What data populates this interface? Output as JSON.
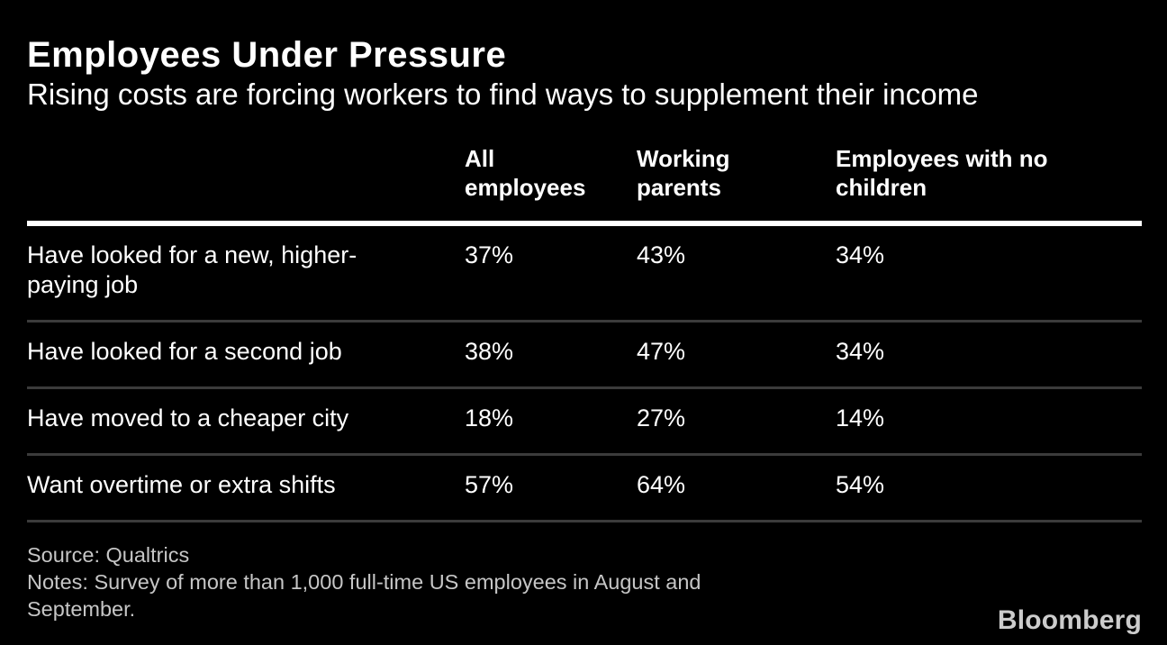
{
  "title": "Employees Under Pressure",
  "subtitle": "Rising costs are forcing workers to find ways to supplement their income",
  "table": {
    "header": [
      "",
      "All\nemployees",
      "Working\nparents",
      "Employees with no\nchildren"
    ],
    "rows": [
      {
        "label": "Have looked for a new, higher-\npaying job",
        "v1": "37%",
        "v2": "43%",
        "v3": "34%"
      },
      {
        "label": "Have looked for a second job",
        "v1": "38%",
        "v2": "47%",
        "v3": "34%"
      },
      {
        "label": "Have moved to a cheaper city",
        "v1": "18%",
        "v2": "27%",
        "v3": "14%"
      },
      {
        "label": "Want overtime or extra shifts",
        "v1": "57%",
        "v2": "64%",
        "v3": "54%"
      }
    ]
  },
  "footer": {
    "source": "Source: Qualtrics",
    "notes": "Notes: Survey of more than 1,000 full-time US employees in August and\nSeptember.",
    "logo": "Bloomberg"
  },
  "colors": {
    "background": "#000000",
    "text": "#ffffff",
    "header_rule": "#ffffff",
    "row_divider": "#3b3b3b",
    "footer_text": "#c6c6c6",
    "logo_text": "#cccccc"
  },
  "chart_data": {
    "type": "table",
    "title": "Employees Under Pressure",
    "subtitle": "Rising costs are forcing workers to find ways to supplement their income",
    "categories": [
      "Have looked for a new, higher-paying job",
      "Have looked for a second job",
      "Have moved to a cheaper city",
      "Want overtime or extra shifts"
    ],
    "series": [
      {
        "name": "All employees",
        "values": [
          37,
          38,
          18,
          57
        ]
      },
      {
        "name": "Working parents",
        "values": [
          43,
          47,
          27,
          64
        ]
      },
      {
        "name": "Employees with no children",
        "values": [
          34,
          34,
          14,
          54
        ]
      }
    ],
    "unit": "%",
    "source": "Qualtrics",
    "notes": "Survey of more than 1,000 full-time US employees in August and September."
  }
}
